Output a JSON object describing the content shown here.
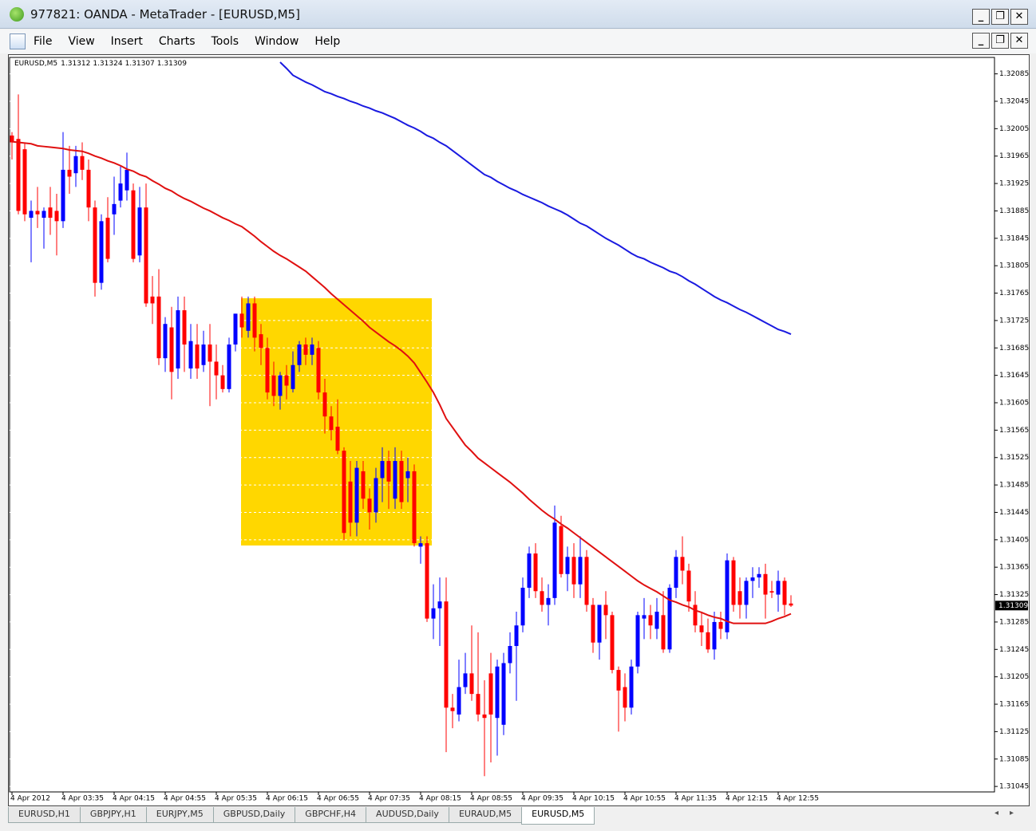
{
  "window": {
    "title": "977821: OANDA - MetaTrader - [EURUSD,M5]"
  },
  "menu": [
    "File",
    "View",
    "Insert",
    "Charts",
    "Tools",
    "Window",
    "Help"
  ],
  "tabs": [
    "EURUSD,H1",
    "GBPJPY,H1",
    "EURJPY,M5",
    "GBPUSD,Daily",
    "GBPCHF,H4",
    "AUDUSD,Daily",
    "EURAUD,M5",
    "EURUSD,M5"
  ],
  "chart_data": {
    "type": "candlestick",
    "symbol": "EURUSD,M5",
    "up_color": "#0000ff",
    "down_color": "#ff0000",
    "grid": true,
    "grid_color": "#ffffff",
    "ylim": [
      1.31037,
      1.32109
    ],
    "yticks": [
      1.32085,
      1.32045,
      1.32005,
      1.31965,
      1.31925,
      1.31885,
      1.31845,
      1.31805,
      1.31765,
      1.31725,
      1.31685,
      1.31645,
      1.31605,
      1.31565,
      1.31525,
      1.31485,
      1.31445,
      1.31405,
      1.31365,
      1.31325,
      1.31285,
      1.31245,
      1.31205,
      1.31165,
      1.31125,
      1.31085,
      1.31045
    ],
    "categories": [
      "4 Apr 2012",
      null,
      null,
      null,
      null,
      null,
      null,
      null,
      "4 Apr 03:35",
      null,
      null,
      null,
      null,
      null,
      null,
      null,
      "4 Apr 04:15",
      null,
      null,
      null,
      null,
      null,
      null,
      null,
      "4 Apr 04:55",
      null,
      null,
      null,
      null,
      null,
      null,
      null,
      "4 Apr 05:35",
      null,
      null,
      null,
      null,
      null,
      null,
      null,
      "4 Apr 06:15",
      null,
      null,
      null,
      null,
      null,
      null,
      null,
      "4 Apr 06:55",
      null,
      null,
      null,
      null,
      null,
      null,
      null,
      "4 Apr 07:35",
      null,
      null,
      null,
      null,
      null,
      null,
      null,
      "4 Apr 08:15",
      null,
      null,
      null,
      null,
      null,
      null,
      null,
      "4 Apr 08:55",
      null,
      null,
      null,
      null,
      null,
      null,
      null,
      "4 Apr 09:35",
      null,
      null,
      null,
      null,
      null,
      null,
      null,
      "4 Apr 10:15",
      null,
      null,
      null,
      null,
      null,
      null,
      null,
      "4 Apr 10:55",
      null,
      null,
      null,
      null,
      null,
      null,
      null,
      "4 Apr 11:35",
      null,
      null,
      null,
      null,
      null,
      null,
      null,
      "4 Apr 12:15",
      null,
      null,
      null,
      null,
      null,
      null,
      null,
      "4 Apr 12:55",
      null,
      null
    ],
    "open": [
      1.31995,
      1.3199,
      1.31975,
      1.31875,
      1.31885,
      1.31875,
      1.3189,
      1.31885,
      1.3187,
      1.31945,
      1.3194,
      1.31965,
      1.31945,
      1.3189,
      1.3178,
      1.31875,
      1.3188,
      1.319,
      1.31915,
      1.31915,
      1.3182,
      1.3189,
      1.3176,
      1.3176,
      1.3167,
      1.31715,
      1.31655,
      1.3174,
      1.31655,
      1.3169,
      1.3166,
      1.3169,
      1.31665,
      1.31645,
      1.31625,
      1.3169,
      1.31735,
      1.3171,
      1.3175,
      1.31705,
      1.31685,
      1.31645,
      1.31615,
      1.31645,
      1.31625,
      1.3166,
      1.3169,
      1.31675,
      1.31685,
      1.3162,
      1.31585,
      1.3157,
      1.31535,
      1.3149,
      1.3143,
      1.31505,
      1.31465,
      1.31445,
      1.31495,
      1.3152,
      1.31465,
      1.3152,
      1.31495,
      1.31505,
      1.31395,
      1.314,
      1.3129,
      1.31305,
      1.31315,
      1.3116,
      1.3115,
      1.3119,
      1.3121,
      1.3118,
      1.3115,
      1.3121,
      1.31145,
      1.31135,
      1.31225,
      1.3125,
      1.3128,
      1.31335,
      1.31385,
      1.3133,
      1.3131,
      1.3132,
      1.31425,
      1.31355,
      1.3138,
      1.3134,
      1.3138,
      1.3131,
      1.31255,
      1.3131,
      1.31295,
      1.31215,
      1.3119,
      1.3116,
      1.3122,
      1.3129,
      1.31295,
      1.31275,
      1.31295,
      1.31245,
      1.31335,
      1.3138,
      1.3136,
      1.3131,
      1.3128,
      1.3127,
      1.31245,
      1.31285,
      1.3127,
      1.31375,
      1.3133,
      1.3131,
      1.31345,
      1.3135,
      1.31355,
      1.3133,
      1.31325,
      1.31345,
      1.31312
    ],
    "high": [
      1.32,
      1.32055,
      1.31985,
      1.319,
      1.3192,
      1.3189,
      1.3192,
      1.3191,
      1.32,
      1.3198,
      1.3198,
      1.31985,
      1.3196,
      1.319,
      1.3188,
      1.31905,
      1.31935,
      1.3195,
      1.3197,
      1.31925,
      1.3192,
      1.31925,
      1.3179,
      1.318,
      1.3173,
      1.31745,
      1.3176,
      1.3176,
      1.3172,
      1.3172,
      1.3171,
      1.3172,
      1.3169,
      1.3166,
      1.317,
      1.31735,
      1.3176,
      1.3176,
      1.3176,
      1.3172,
      1.317,
      1.31665,
      1.3165,
      1.3166,
      1.3168,
      1.31695,
      1.317,
      1.317,
      1.31695,
      1.3164,
      1.316,
      1.3161,
      1.3154,
      1.3152,
      1.3152,
      1.3152,
      1.3148,
      1.3151,
      1.3154,
      1.31535,
      1.3154,
      1.31535,
      1.31525,
      1.31515,
      1.3141,
      1.3141,
      1.3134,
      1.3135,
      1.3135,
      1.3118,
      1.3123,
      1.3124,
      1.3128,
      1.3127,
      1.312,
      1.3124,
      1.3123,
      1.3124,
      1.3127,
      1.313,
      1.3135,
      1.31395,
      1.314,
      1.3135,
      1.3134,
      1.31455,
      1.3144,
      1.31395,
      1.314,
      1.3141,
      1.3139,
      1.3132,
      1.3131,
      1.3133,
      1.313,
      1.3122,
      1.3121,
      1.3123,
      1.313,
      1.3132,
      1.3131,
      1.3132,
      1.3133,
      1.3134,
      1.3139,
      1.3141,
      1.3137,
      1.3133,
      1.313,
      1.3129,
      1.313,
      1.313,
      1.31385,
      1.3138,
      1.3135,
      1.3135,
      1.31365,
      1.31365,
      1.3137,
      1.31345,
      1.3136,
      1.3135,
      1.31324
    ],
    "low": [
      1.3196,
      1.3188,
      1.3187,
      1.3181,
      1.3186,
      1.3183,
      1.3185,
      1.3182,
      1.3186,
      1.3191,
      1.3192,
      1.3193,
      1.3187,
      1.3176,
      1.3177,
      1.3181,
      1.3185,
      1.3189,
      1.319,
      1.3181,
      1.3181,
      1.31745,
      1.3172,
      1.3166,
      1.3165,
      1.3161,
      1.3164,
      1.3165,
      1.3164,
      1.3164,
      1.3165,
      1.316,
      1.3161,
      1.3162,
      1.3162,
      1.3168,
      1.317,
      1.317,
      1.3168,
      1.3166,
      1.3161,
      1.316,
      1.31595,
      1.3161,
      1.3162,
      1.3165,
      1.3166,
      1.3166,
      1.3161,
      1.3156,
      1.3155,
      1.3153,
      1.31405,
      1.3141,
      1.3141,
      1.3145,
      1.3142,
      1.3143,
      1.3146,
      1.3145,
      1.3145,
      1.3145,
      1.3146,
      1.31395,
      1.3137,
      1.31285,
      1.3126,
      1.3125,
      1.31095,
      1.3113,
      1.3114,
      1.3118,
      1.3117,
      1.3114,
      1.3106,
      1.3108,
      1.3109,
      1.3112,
      1.3121,
      1.3117,
      1.3127,
      1.3132,
      1.3132,
      1.313,
      1.3128,
      1.3131,
      1.3135,
      1.3133,
      1.3132,
      1.3132,
      1.313,
      1.3124,
      1.3123,
      1.3126,
      1.3121,
      1.31125,
      1.3114,
      1.3115,
      1.3121,
      1.3126,
      1.3126,
      1.3126,
      1.3124,
      1.3124,
      1.3132,
      1.3134,
      1.313,
      1.3127,
      1.3125,
      1.3124,
      1.3123,
      1.3126,
      1.3126,
      1.313,
      1.3129,
      1.3129,
      1.3132,
      1.31335,
      1.3129,
      1.3132,
      1.313,
      1.31295,
      1.31307
    ],
    "close": [
      1.31985,
      1.31885,
      1.3188,
      1.31885,
      1.3188,
      1.31885,
      1.31875,
      1.3187,
      1.31945,
      1.31935,
      1.31965,
      1.31945,
      1.3189,
      1.3178,
      1.3187,
      1.31815,
      1.31895,
      1.31925,
      1.31945,
      1.31815,
      1.3189,
      1.3175,
      1.3175,
      1.3167,
      1.3172,
      1.3165,
      1.3174,
      1.3169,
      1.31695,
      1.31655,
      1.3169,
      1.31665,
      1.31645,
      1.31625,
      1.3169,
      1.31735,
      1.31715,
      1.3175,
      1.317,
      1.31685,
      1.3162,
      1.31615,
      1.31645,
      1.3163,
      1.3166,
      1.3169,
      1.31675,
      1.3169,
      1.3162,
      1.31585,
      1.31565,
      1.31535,
      1.31415,
      1.3143,
      1.3151,
      1.31465,
      1.31445,
      1.31495,
      1.3152,
      1.3149,
      1.3152,
      1.3146,
      1.31505,
      1.314,
      1.314,
      1.3129,
      1.31305,
      1.31315,
      1.3116,
      1.31155,
      1.3119,
      1.3121,
      1.3118,
      1.3115,
      1.31145,
      1.3115,
      1.3122,
      1.31225,
      1.3125,
      1.3128,
      1.31335,
      1.31385,
      1.3133,
      1.3131,
      1.3132,
      1.3143,
      1.31355,
      1.3138,
      1.3134,
      1.3138,
      1.3131,
      1.31255,
      1.3131,
      1.31295,
      1.31215,
      1.31185,
      1.3116,
      1.3122,
      1.31295,
      1.31295,
      1.3128,
      1.313,
      1.31245,
      1.31335,
      1.3138,
      1.3136,
      1.31315,
      1.3128,
      1.3127,
      1.31245,
      1.31285,
      1.31275,
      1.31375,
      1.3131,
      1.3131,
      1.31345,
      1.3135,
      1.31355,
      1.31325,
      1.31328,
      1.31345,
      1.3131,
      1.31309
    ],
    "overlays": [
      {
        "color": "#e01010",
        "values": [
          1.31986,
          1.31985,
          1.31984,
          1.31983,
          1.3198,
          1.31979,
          1.31978,
          1.31977,
          1.31976,
          1.31974,
          1.31973,
          1.31972,
          1.31969,
          1.31965,
          1.31962,
          1.31958,
          1.31955,
          1.31951,
          1.31946,
          1.31943,
          1.31938,
          1.31935,
          1.31929,
          1.31924,
          1.31918,
          1.31914,
          1.31908,
          1.31903,
          1.31899,
          1.31894,
          1.31889,
          1.31885,
          1.3188,
          1.31875,
          1.31871,
          1.31866,
          1.31862,
          1.31855,
          1.31848,
          1.3184,
          1.31833,
          1.31826,
          1.3182,
          1.31815,
          1.31809,
          1.31803,
          1.31797,
          1.31789,
          1.31781,
          1.31773,
          1.31764,
          1.31756,
          1.31748,
          1.3174,
          1.31732,
          1.31724,
          1.31715,
          1.31708,
          1.31701,
          1.31694,
          1.31688,
          1.31681,
          1.31673,
          1.31663,
          1.31649,
          1.31635,
          1.3162,
          1.31602,
          1.31582,
          1.31569,
          1.31556,
          1.31543,
          1.31534,
          1.31524,
          1.31517,
          1.3151,
          1.31503,
          1.31496,
          1.31489,
          1.31481,
          1.31473,
          1.31464,
          1.31456,
          1.31448,
          1.31441,
          1.31435,
          1.31428,
          1.31422,
          1.31415,
          1.31408,
          1.31401,
          1.31394,
          1.31387,
          1.3138,
          1.31373,
          1.31366,
          1.31359,
          1.31352,
          1.31345,
          1.31339,
          1.31334,
          1.31329,
          1.31323,
          1.31317,
          1.31314,
          1.3131,
          1.31307,
          1.31302,
          1.31299,
          1.31295,
          1.31292,
          1.3129,
          1.31286,
          1.31283,
          1.31283,
          1.31283,
          1.31283,
          1.31283,
          1.31283,
          1.31286,
          1.3129,
          1.31293,
          1.31297
        ]
      },
      {
        "color": "#1a1ae0",
        "values": [
          null,
          null,
          null,
          null,
          null,
          null,
          null,
          null,
          null,
          null,
          null,
          null,
          null,
          null,
          null,
          null,
          null,
          null,
          null,
          null,
          null,
          null,
          null,
          null,
          null,
          null,
          null,
          null,
          null,
          null,
          null,
          null,
          null,
          null,
          null,
          null,
          null,
          null,
          null,
          null,
          null,
          null,
          1.32102,
          1.32093,
          1.32083,
          1.32078,
          1.32073,
          1.32069,
          1.32064,
          1.32059,
          1.32056,
          1.32052,
          1.32049,
          1.32045,
          1.32042,
          1.32038,
          1.32035,
          1.32031,
          1.32028,
          1.32024,
          1.3202,
          1.32015,
          1.3201,
          1.32006,
          1.32001,
          1.31995,
          1.31991,
          1.31985,
          1.3198,
          1.31973,
          1.31966,
          1.31959,
          1.31952,
          1.31945,
          1.31938,
          1.31934,
          1.31928,
          1.31923,
          1.31918,
          1.31914,
          1.31909,
          1.31905,
          1.31901,
          1.31897,
          1.31892,
          1.31888,
          1.31884,
          1.31879,
          1.31873,
          1.31867,
          1.31863,
          1.31857,
          1.31851,
          1.31845,
          1.3184,
          1.31835,
          1.31829,
          1.31823,
          1.31818,
          1.31815,
          1.3181,
          1.31806,
          1.31802,
          1.31797,
          1.31794,
          1.31789,
          1.31783,
          1.31778,
          1.31772,
          1.31766,
          1.3176,
          1.31755,
          1.31751,
          1.31746,
          1.31741,
          1.31737,
          1.31732,
          1.31727,
          1.31722,
          1.31717,
          1.31712,
          1.31709,
          1.31705
        ]
      }
    ]
  }
}
